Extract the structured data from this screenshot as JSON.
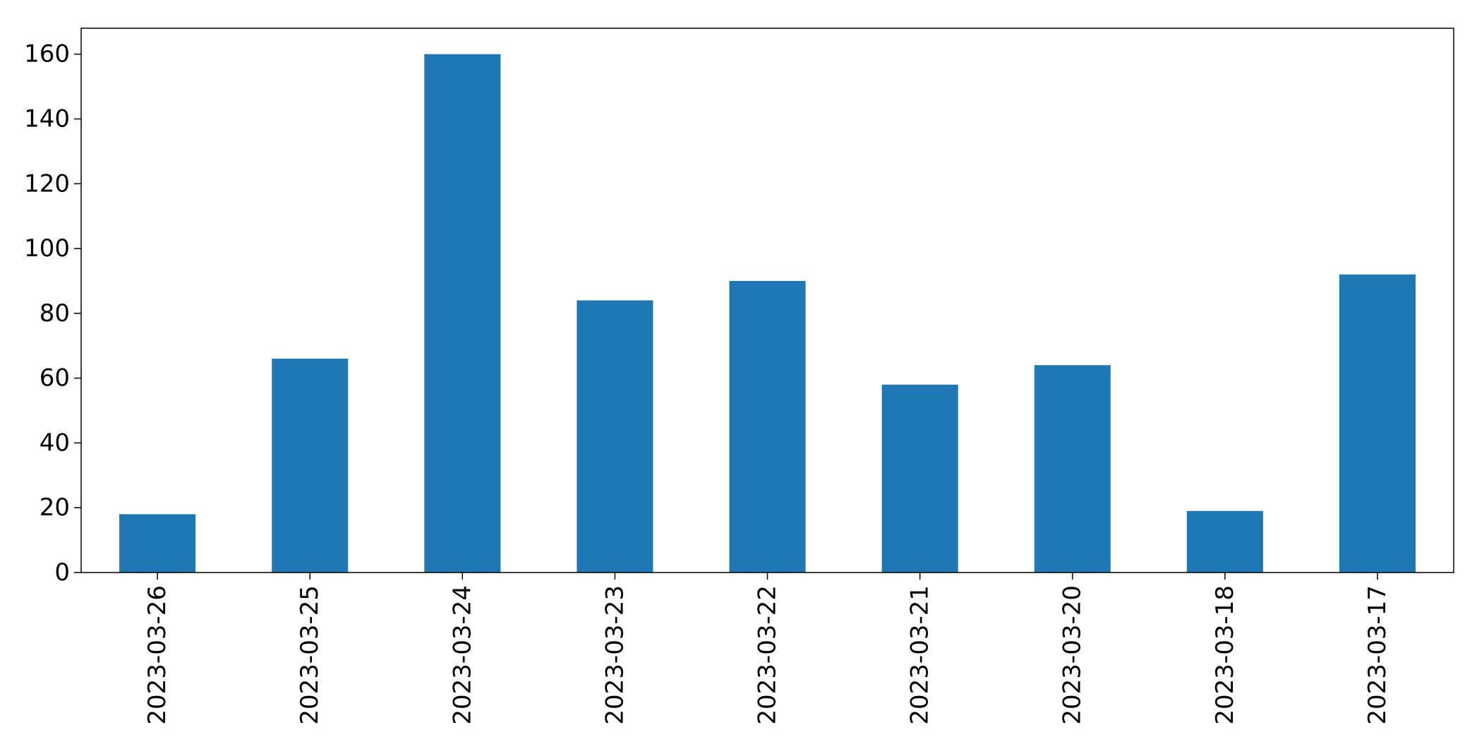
{
  "chart_data": {
    "type": "bar",
    "categories": [
      "2023-03-26",
      "2023-03-25",
      "2023-03-24",
      "2023-03-23",
      "2023-03-22",
      "2023-03-21",
      "2023-03-20",
      "2023-03-18",
      "2023-03-17"
    ],
    "values": [
      18,
      66,
      160,
      84,
      90,
      58,
      64,
      19,
      92
    ],
    "title": "",
    "xlabel": "",
    "ylabel": "",
    "ylim": [
      0,
      168
    ],
    "yticks": [
      0,
      20,
      40,
      60,
      80,
      100,
      120,
      140,
      160
    ],
    "bar_color": "#1f77b4",
    "grid": false,
    "legend": "none",
    "x_tick_rotation": "vertical"
  }
}
